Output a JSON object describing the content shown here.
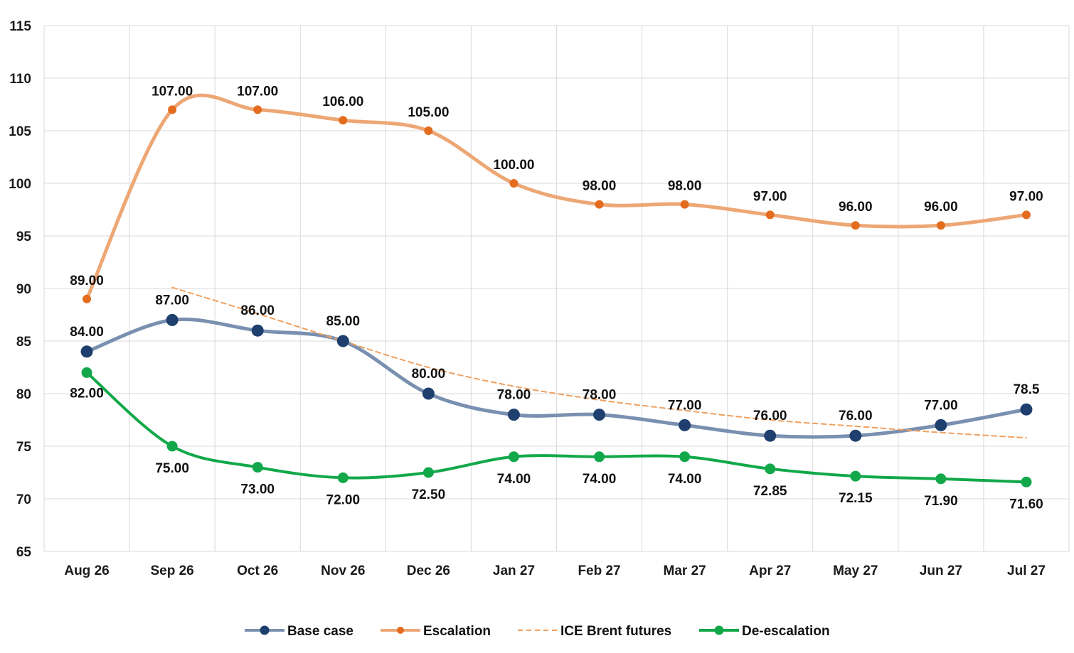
{
  "chart_data": {
    "type": "line",
    "categories": [
      "Aug 26",
      "Sep 26",
      "Oct 26",
      "Nov 26",
      "Dec 26",
      "Jan 27",
      "Feb 27",
      "Mar 27",
      "Apr 27",
      "May 27",
      "Jun 27",
      "Jul 27"
    ],
    "ylim": [
      65,
      115
    ],
    "yticks": [
      65,
      70,
      75,
      80,
      85,
      90,
      95,
      100,
      105,
      110,
      115
    ],
    "grid": true,
    "legend_position": "bottom",
    "series": [
      {
        "name": "Base case",
        "color": "#1F3F6E",
        "line_color": "#7990B0",
        "marker": "large-circle",
        "values": [
          84,
          87,
          86,
          85,
          80,
          78,
          78,
          77,
          76,
          76,
          77,
          78.5
        ],
        "labels": [
          "84.00",
          "87.00",
          "86.00",
          "85.00",
          "80.00",
          "78.00",
          "78.00",
          "77.00",
          "76.00",
          "76.00",
          "77.00",
          "78.5"
        ]
      },
      {
        "name": "Escalation",
        "color": "#E46C1E",
        "line_color": "#EDA775",
        "marker": "small-circle",
        "values": [
          89,
          107,
          107,
          106,
          105,
          100,
          98,
          98,
          97,
          96,
          96,
          97
        ],
        "labels": [
          "89.00",
          "107.00",
          "107.00",
          "106.00",
          "105.00",
          "100.00",
          "98.00",
          "98.00",
          "97.00",
          "96.00",
          "96.00",
          "97.00"
        ]
      },
      {
        "name": "ICE Brent futures",
        "color": "#F0A060",
        "line_color": "#F0A060",
        "marker": "none",
        "dashed": true,
        "values": [
          null,
          90.1,
          87.6,
          85.0,
          82.5,
          80.7,
          79.4,
          78.4,
          77.5,
          76.9,
          76.3,
          75.8
        ]
      },
      {
        "name": "De-escalation",
        "color": "#12A84A",
        "line_color": "#12A84A",
        "marker": "circle",
        "values": [
          82,
          75,
          73,
          72,
          72.5,
          74,
          74,
          74,
          72.85,
          72.15,
          71.9,
          71.6
        ],
        "labels": [
          "82.00",
          "75.00",
          "73.00",
          "72.00",
          "72.50",
          "74.00",
          "74.00",
          "74.00",
          "72.85",
          "72.15",
          "71.90",
          "71.60"
        ]
      }
    ]
  }
}
